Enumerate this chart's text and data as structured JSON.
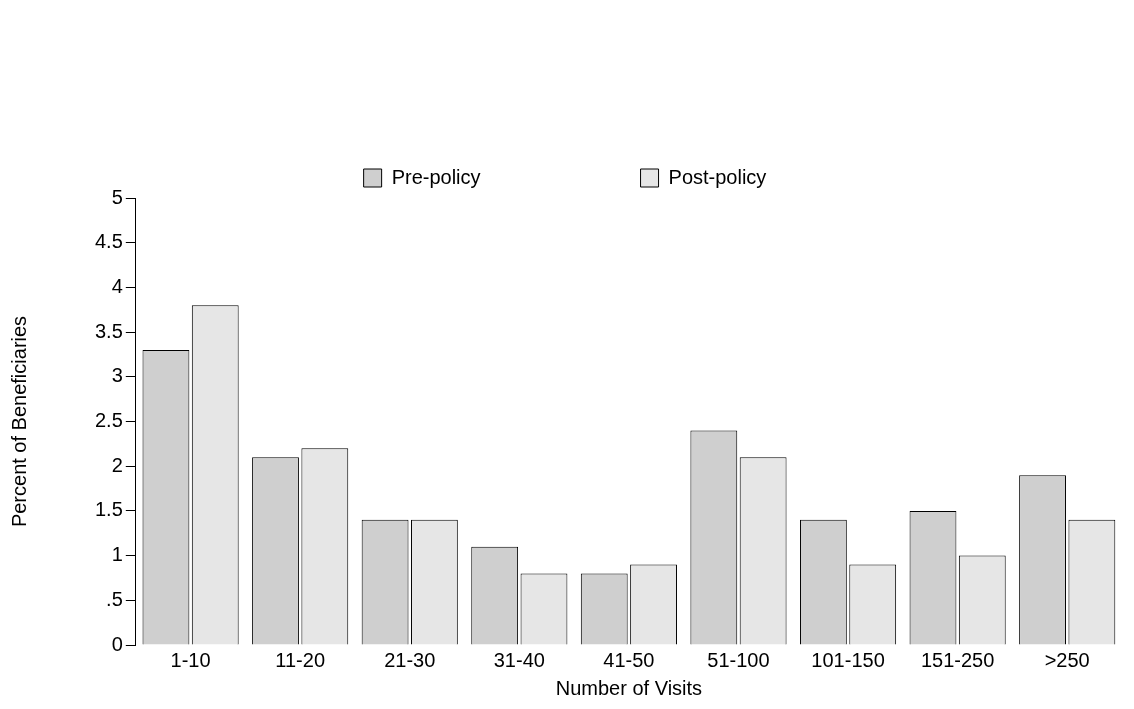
{
  "chart_data": {
    "type": "bar",
    "xlabel": "Number of Visits",
    "ylabel": "Percent of Beneficiaries",
    "categories": [
      "1-10",
      "11-20",
      "21-30",
      "31-40",
      "41-50",
      "51-100",
      "101-150",
      "151-250",
      ">250"
    ],
    "series": [
      {
        "name": "Pre-policy",
        "color": "#cfcfcf",
        "values": [
          3.3,
          2.1,
          1.4,
          1.1,
          0.8,
          2.4,
          1.4,
          1.5,
          1.9
        ]
      },
      {
        "name": "Post-policy",
        "color": "#e6e6e6",
        "values": [
          3.8,
          2.2,
          1.4,
          0.8,
          0.9,
          2.1,
          0.9,
          1.0,
          1.4
        ]
      }
    ],
    "ylim": [
      0,
      5
    ],
    "yticks": [
      0,
      {
        "value": 0.5,
        "label": ".5"
      },
      1,
      1.5,
      2,
      2.5,
      3,
      3.5,
      4,
      4.5,
      5
    ],
    "grid": false,
    "legend": "top"
  }
}
